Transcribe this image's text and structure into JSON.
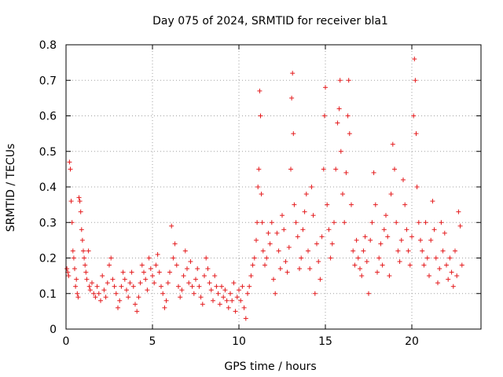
{
  "chart_data": {
    "type": "scatter",
    "title": "Day 075 of 2024, SRMTID for receiver bla1",
    "xlabel": "GPS time / hours",
    "ylabel": "SRMTID / TECUs",
    "xlim": [
      0,
      24
    ],
    "ylim": [
      0,
      0.8
    ],
    "x_ticks": [
      0,
      5,
      10,
      15,
      20
    ],
    "y_ticks": [
      0,
      0.1,
      0.2,
      0.3,
      0.4,
      0.5,
      0.6,
      0.7,
      0.8
    ],
    "x_tick_labels": [
      "0",
      "5",
      "10",
      "15",
      "20"
    ],
    "y_tick_labels": [
      "0",
      "0.1",
      "0.2",
      "0.3",
      "0.4",
      "0.5",
      "0.6",
      "0.7",
      "0.8"
    ],
    "grid": true,
    "marker": "+",
    "color": "#e41a1c",
    "series": [
      {
        "name": "SRMTID",
        "points": [
          [
            0.05,
            0.17
          ],
          [
            0.1,
            0.16
          ],
          [
            0.15,
            0.15
          ],
          [
            0.2,
            0.47
          ],
          [
            0.25,
            0.45
          ],
          [
            0.3,
            0.36
          ],
          [
            0.35,
            0.3
          ],
          [
            0.4,
            0.22
          ],
          [
            0.45,
            0.2
          ],
          [
            0.5,
            0.17
          ],
          [
            0.55,
            0.12
          ],
          [
            0.6,
            0.14
          ],
          [
            0.65,
            0.1
          ],
          [
            0.7,
            0.09
          ],
          [
            0.75,
            0.37
          ],
          [
            0.8,
            0.36
          ],
          [
            0.85,
            0.33
          ],
          [
            0.9,
            0.28
          ],
          [
            0.95,
            0.25
          ],
          [
            1.0,
            0.22
          ],
          [
            1.05,
            0.2
          ],
          [
            1.1,
            0.18
          ],
          [
            1.15,
            0.16
          ],
          [
            1.2,
            0.14
          ],
          [
            1.3,
            0.22
          ],
          [
            1.35,
            0.12
          ],
          [
            1.4,
            0.11
          ],
          [
            1.5,
            0.13
          ],
          [
            1.6,
            0.1
          ],
          [
            1.7,
            0.09
          ],
          [
            1.8,
            0.12
          ],
          [
            1.9,
            0.1
          ],
          [
            2.0,
            0.08
          ],
          [
            2.1,
            0.15
          ],
          [
            2.2,
            0.11
          ],
          [
            2.3,
            0.09
          ],
          [
            2.4,
            0.13
          ],
          [
            2.5,
            0.18
          ],
          [
            2.6,
            0.2
          ],
          [
            2.7,
            0.14
          ],
          [
            2.8,
            0.12
          ],
          [
            2.9,
            0.1
          ],
          [
            3.0,
            0.06
          ],
          [
            3.1,
            0.08
          ],
          [
            3.2,
            0.12
          ],
          [
            3.3,
            0.16
          ],
          [
            3.4,
            0.14
          ],
          [
            3.5,
            0.11
          ],
          [
            3.6,
            0.09
          ],
          [
            3.7,
            0.13
          ],
          [
            3.8,
            0.16
          ],
          [
            3.9,
            0.12
          ],
          [
            4.0,
            0.07
          ],
          [
            4.1,
            0.05
          ],
          [
            4.2,
            0.09
          ],
          [
            4.3,
            0.13
          ],
          [
            4.4,
            0.18
          ],
          [
            4.5,
            0.16
          ],
          [
            4.6,
            0.14
          ],
          [
            4.7,
            0.11
          ],
          [
            4.8,
            0.2
          ],
          [
            4.9,
            0.17
          ],
          [
            5.0,
            0.15
          ],
          [
            5.1,
            0.13
          ],
          [
            5.2,
            0.18
          ],
          [
            5.3,
            0.21
          ],
          [
            5.4,
            0.16
          ],
          [
            5.5,
            0.12
          ],
          [
            5.6,
            0.1
          ],
          [
            5.7,
            0.06
          ],
          [
            5.8,
            0.08
          ],
          [
            5.9,
            0.13
          ],
          [
            6.0,
            0.16
          ],
          [
            6.1,
            0.29
          ],
          [
            6.2,
            0.2
          ],
          [
            6.3,
            0.24
          ],
          [
            6.4,
            0.18
          ],
          [
            6.5,
            0.12
          ],
          [
            6.6,
            0.09
          ],
          [
            6.7,
            0.11
          ],
          [
            6.8,
            0.15
          ],
          [
            6.9,
            0.22
          ],
          [
            7.0,
            0.17
          ],
          [
            7.1,
            0.13
          ],
          [
            7.2,
            0.19
          ],
          [
            7.3,
            0.12
          ],
          [
            7.4,
            0.1
          ],
          [
            7.5,
            0.14
          ],
          [
            7.6,
            0.17
          ],
          [
            7.7,
            0.12
          ],
          [
            7.8,
            0.09
          ],
          [
            7.9,
            0.07
          ],
          [
            8.0,
            0.15
          ],
          [
            8.1,
            0.2
          ],
          [
            8.2,
            0.17
          ],
          [
            8.3,
            0.13
          ],
          [
            8.4,
            0.11
          ],
          [
            8.5,
            0.08
          ],
          [
            8.6,
            0.15
          ],
          [
            8.7,
            0.12
          ],
          [
            8.8,
            0.1
          ],
          [
            8.9,
            0.07
          ],
          [
            9.0,
            0.12
          ],
          [
            9.1,
            0.09
          ],
          [
            9.2,
            0.11
          ],
          [
            9.3,
            0.08
          ],
          [
            9.4,
            0.06
          ],
          [
            9.5,
            0.1
          ],
          [
            9.6,
            0.08
          ],
          [
            9.7,
            0.13
          ],
          [
            9.8,
            0.05
          ],
          [
            9.9,
            0.09
          ],
          [
            10.0,
            0.11
          ],
          [
            10.1,
            0.08
          ],
          [
            10.2,
            0.12
          ],
          [
            10.3,
            0.06
          ],
          [
            10.4,
            0.03
          ],
          [
            10.5,
            0.1
          ],
          [
            10.6,
            0.12
          ],
          [
            10.7,
            0.15
          ],
          [
            10.8,
            0.18
          ],
          [
            10.9,
            0.2
          ],
          [
            11.0,
            0.25
          ],
          [
            11.05,
            0.3
          ],
          [
            11.1,
            0.4
          ],
          [
            11.15,
            0.45
          ],
          [
            11.2,
            0.67
          ],
          [
            11.25,
            0.6
          ],
          [
            11.3,
            0.38
          ],
          [
            11.35,
            0.3
          ],
          [
            11.4,
            0.22
          ],
          [
            11.5,
            0.18
          ],
          [
            11.6,
            0.2
          ],
          [
            11.7,
            0.27
          ],
          [
            11.8,
            0.24
          ],
          [
            11.9,
            0.3
          ],
          [
            12.0,
            0.14
          ],
          [
            12.1,
            0.1
          ],
          [
            12.2,
            0.27
          ],
          [
            12.3,
            0.22
          ],
          [
            12.4,
            0.17
          ],
          [
            12.5,
            0.32
          ],
          [
            12.6,
            0.28
          ],
          [
            12.7,
            0.19
          ],
          [
            12.8,
            0.16
          ],
          [
            12.9,
            0.23
          ],
          [
            13.0,
            0.45
          ],
          [
            13.05,
            0.65
          ],
          [
            13.1,
            0.72
          ],
          [
            13.15,
            0.55
          ],
          [
            13.2,
            0.35
          ],
          [
            13.3,
            0.3
          ],
          [
            13.4,
            0.26
          ],
          [
            13.5,
            0.17
          ],
          [
            13.6,
            0.2
          ],
          [
            13.7,
            0.28
          ],
          [
            13.8,
            0.33
          ],
          [
            13.9,
            0.38
          ],
          [
            14.0,
            0.22
          ],
          [
            14.1,
            0.17
          ],
          [
            14.2,
            0.4
          ],
          [
            14.3,
            0.32
          ],
          [
            14.4,
            0.1
          ],
          [
            14.5,
            0.24
          ],
          [
            14.6,
            0.19
          ],
          [
            14.7,
            0.14
          ],
          [
            14.8,
            0.26
          ],
          [
            14.9,
            0.45
          ],
          [
            14.95,
            0.6
          ],
          [
            15.0,
            0.68
          ],
          [
            15.1,
            0.35
          ],
          [
            15.2,
            0.28
          ],
          [
            15.3,
            0.2
          ],
          [
            15.4,
            0.24
          ],
          [
            15.5,
            0.3
          ],
          [
            15.6,
            0.45
          ],
          [
            15.7,
            0.58
          ],
          [
            15.8,
            0.62
          ],
          [
            15.85,
            0.7
          ],
          [
            15.9,
            0.5
          ],
          [
            16.0,
            0.38
          ],
          [
            16.1,
            0.3
          ],
          [
            16.2,
            0.44
          ],
          [
            16.3,
            0.6
          ],
          [
            16.35,
            0.7
          ],
          [
            16.4,
            0.55
          ],
          [
            16.5,
            0.35
          ],
          [
            16.6,
            0.22
          ],
          [
            16.7,
            0.18
          ],
          [
            16.8,
            0.25
          ],
          [
            16.9,
            0.2
          ],
          [
            17.0,
            0.17
          ],
          [
            17.1,
            0.15
          ],
          [
            17.2,
            0.22
          ],
          [
            17.3,
            0.26
          ],
          [
            17.4,
            0.19
          ],
          [
            17.5,
            0.1
          ],
          [
            17.6,
            0.25
          ],
          [
            17.7,
            0.3
          ],
          [
            17.8,
            0.44
          ],
          [
            17.9,
            0.35
          ],
          [
            18.0,
            0.16
          ],
          [
            18.1,
            0.2
          ],
          [
            18.2,
            0.24
          ],
          [
            18.3,
            0.18
          ],
          [
            18.4,
            0.28
          ],
          [
            18.5,
            0.32
          ],
          [
            18.6,
            0.26
          ],
          [
            18.7,
            0.15
          ],
          [
            18.8,
            0.38
          ],
          [
            18.9,
            0.52
          ],
          [
            19.0,
            0.45
          ],
          [
            19.1,
            0.3
          ],
          [
            19.2,
            0.22
          ],
          [
            19.3,
            0.19
          ],
          [
            19.4,
            0.25
          ],
          [
            19.5,
            0.42
          ],
          [
            19.6,
            0.35
          ],
          [
            19.7,
            0.28
          ],
          [
            19.8,
            0.22
          ],
          [
            19.9,
            0.18
          ],
          [
            20.0,
            0.26
          ],
          [
            20.1,
            0.6
          ],
          [
            20.15,
            0.76
          ],
          [
            20.2,
            0.7
          ],
          [
            20.25,
            0.55
          ],
          [
            20.3,
            0.4
          ],
          [
            20.4,
            0.3
          ],
          [
            20.5,
            0.25
          ],
          [
            20.6,
            0.22
          ],
          [
            20.7,
            0.18
          ],
          [
            20.8,
            0.3
          ],
          [
            20.9,
            0.2
          ],
          [
            21.0,
            0.15
          ],
          [
            21.1,
            0.25
          ],
          [
            21.2,
            0.36
          ],
          [
            21.3,
            0.28
          ],
          [
            21.4,
            0.2
          ],
          [
            21.5,
            0.13
          ],
          [
            21.6,
            0.17
          ],
          [
            21.7,
            0.3
          ],
          [
            21.8,
            0.22
          ],
          [
            21.9,
            0.27
          ],
          [
            22.0,
            0.18
          ],
          [
            22.1,
            0.14
          ],
          [
            22.2,
            0.2
          ],
          [
            22.3,
            0.16
          ],
          [
            22.4,
            0.12
          ],
          [
            22.5,
            0.22
          ],
          [
            22.6,
            0.15
          ],
          [
            22.7,
            0.33
          ],
          [
            22.8,
            0.29
          ],
          [
            22.9,
            0.18
          ]
        ]
      }
    ]
  }
}
